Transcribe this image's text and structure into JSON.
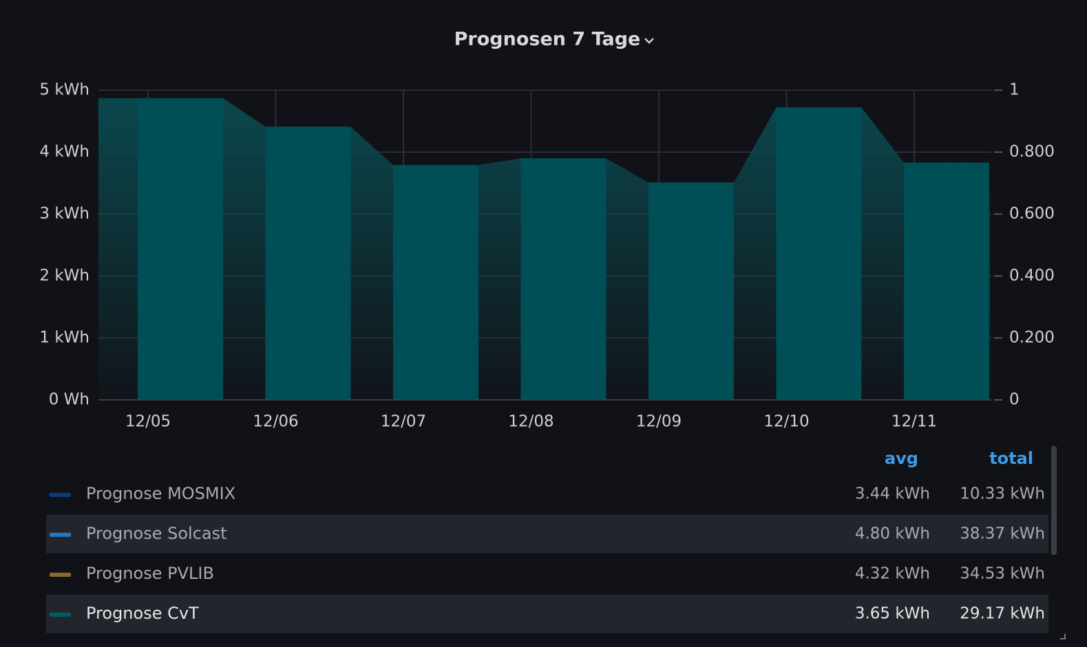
{
  "chart_data": {
    "type": "bar",
    "title": "Prognosen 7 Tage",
    "categories": [
      "12/05",
      "12/06",
      "12/07",
      "12/08",
      "12/09",
      "12/10",
      "12/11"
    ],
    "values": [
      4.87,
      4.41,
      3.79,
      3.9,
      3.51,
      4.72,
      3.83
    ],
    "color": "#004f57",
    "ylim": [
      0,
      5
    ],
    "yticks": [
      {
        "value": 0,
        "label": "0 Wh"
      },
      {
        "value": 1,
        "label": "1 kWh"
      },
      {
        "value": 2,
        "label": "2 kWh"
      },
      {
        "value": 3,
        "label": "3 kWh"
      },
      {
        "value": 4,
        "label": "4 kWh"
      },
      {
        "value": 5,
        "label": "5 kWh"
      }
    ],
    "y2lim": [
      0,
      1
    ],
    "y2ticks": [
      0,
      {
        "value": 0.2,
        "label": "0.200"
      },
      {
        "value": 0.4,
        "label": "0.400"
      },
      {
        "value": 0.6,
        "label": "0.600"
      },
      {
        "value": 0.8,
        "label": "0.800"
      },
      1
    ],
    "grid": true,
    "legend": {
      "columns": [
        "avg",
        "total"
      ],
      "rows": [
        {
          "name": "Prognose MOSMIX",
          "color": "#0b3b7a",
          "avg": "3.44 kWh",
          "total": "10.33 kWh"
        },
        {
          "name": "Prognose Solcast",
          "color": "#1f78c1",
          "avg": "4.80 kWh",
          "total": "38.37 kWh"
        },
        {
          "name": "Prognose PVLIB",
          "color": "#8a6a2a",
          "avg": "4.32 kWh",
          "total": "34.53 kWh"
        },
        {
          "name": "Prognose CvT",
          "color": "#005f63",
          "avg": "3.65 kWh",
          "total": "29.17 kWh"
        }
      ]
    }
  }
}
